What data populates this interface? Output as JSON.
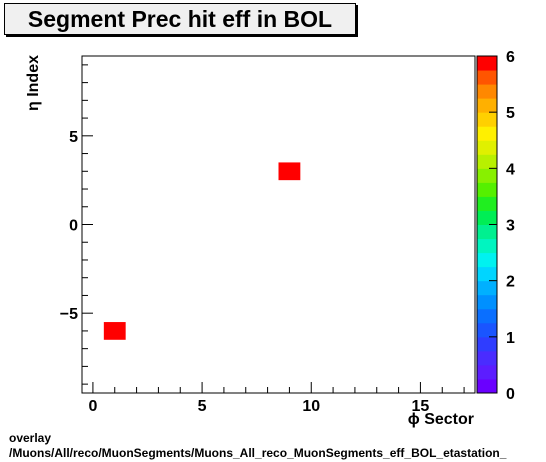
{
  "chart_data": {
    "type": "heatmap",
    "title": "Segment Prec hit eff in BOL",
    "xlabel": "ϕ Sector",
    "ylabel": "η Index",
    "xlim": [
      -0.5,
      17.5
    ],
    "ylim": [
      -9.5,
      9.5
    ],
    "x_ticks": [
      0,
      5,
      10,
      15
    ],
    "y_ticks": [
      -5,
      0,
      5
    ],
    "zlim": [
      0,
      6
    ],
    "z_ticks": [
      0,
      1,
      2,
      3,
      4,
      5,
      6
    ],
    "cells": [
      {
        "x": 1,
        "y": -6,
        "z": 6
      },
      {
        "x": 9,
        "y": 3,
        "z": 6
      }
    ]
  },
  "footer": {
    "line1": "overlay",
    "line2": "/Muons/All/reco/MuonSegments/Muons_All_reco_MuonSegments_eff_BOL_etastation_"
  }
}
